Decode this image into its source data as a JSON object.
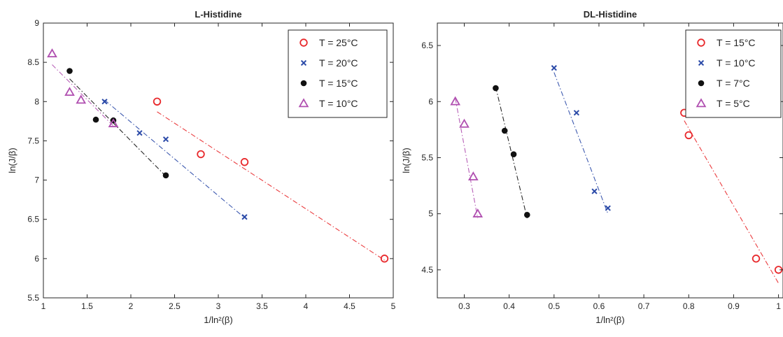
{
  "chart_data": [
    {
      "type": "scatter",
      "title": "L-Histidine",
      "xlabel": "1/ln²(β)",
      "ylabel": "ln(J/β)",
      "xlim": [
        1,
        5
      ],
      "ylim": [
        5.5,
        9
      ],
      "xticks": [
        "1",
        "1.5",
        "2",
        "2.5",
        "3",
        "3.5",
        "4",
        "4.5",
        "5"
      ],
      "yticks": [
        "5.5",
        "6",
        "6.5",
        "7",
        "7.5",
        "8",
        "8.5",
        "9"
      ],
      "grid": false,
      "legend_position": "top-right",
      "series": [
        {
          "name": "T = 25°C",
          "color": "#e8282b",
          "marker": "circle",
          "points": [
            [
              2.3,
              8.0
            ],
            [
              2.8,
              7.33
            ],
            [
              3.3,
              7.23
            ],
            [
              4.9,
              6.0
            ]
          ],
          "fit": [
            [
              2.3,
              7.87
            ],
            [
              4.9,
              5.98
            ]
          ]
        },
        {
          "name": "T = 20°C",
          "color": "#2b4aa8",
          "marker": "x",
          "points": [
            [
              1.7,
              8.0
            ],
            [
              2.1,
              7.6
            ],
            [
              2.4,
              7.52
            ],
            [
              3.3,
              6.53
            ]
          ],
          "fit": [
            [
              1.7,
              8.02
            ],
            [
              3.3,
              6.52
            ]
          ]
        },
        {
          "name": "T = 15°C",
          "color": "#111111",
          "marker": "dot",
          "points": [
            [
              1.3,
              8.39
            ],
            [
              1.6,
              7.77
            ],
            [
              1.8,
              7.76
            ],
            [
              2.4,
              7.06
            ]
          ],
          "fit": [
            [
              1.3,
              8.29
            ],
            [
              2.4,
              7.05
            ]
          ]
        },
        {
          "name": "T = 10°C",
          "color": "#b04fb0",
          "marker": "triangle",
          "points": [
            [
              1.1,
              8.61
            ],
            [
              1.3,
              8.12
            ],
            [
              1.43,
              8.02
            ],
            [
              1.8,
              7.72
            ]
          ],
          "fit": [
            [
              1.1,
              8.47
            ],
            [
              1.8,
              7.69
            ]
          ]
        }
      ]
    },
    {
      "type": "scatter",
      "title": "DL-Histidine",
      "xlabel": "1/ln²(β)",
      "ylabel": "ln(J/β)",
      "xlim": [
        0.24,
        1.01
      ],
      "ylim": [
        4.25,
        6.7
      ],
      "xticks": [
        "0.3",
        "0.4",
        "0.5",
        "0.6",
        "0.7",
        "0.8",
        "0.9",
        "1"
      ],
      "yticks": [
        "4.5",
        "5",
        "5.5",
        "6",
        "6.5"
      ],
      "grid": false,
      "legend_position": "top-right",
      "series": [
        {
          "name": "T = 15°C",
          "color": "#e8282b",
          "marker": "circle",
          "points": [
            [
              0.79,
              5.9
            ],
            [
              0.8,
              5.7
            ],
            [
              0.95,
              4.6
            ],
            [
              1.0,
              4.5
            ]
          ],
          "fit": [
            [
              0.79,
              5.83
            ],
            [
              1.0,
              4.38
            ]
          ]
        },
        {
          "name": "T = 10°C",
          "color": "#2b4aa8",
          "marker": "x",
          "points": [
            [
              0.5,
              6.3
            ],
            [
              0.55,
              5.9
            ],
            [
              0.59,
              5.2
            ],
            [
              0.62,
              5.05
            ]
          ],
          "fit": [
            [
              0.5,
              6.26
            ],
            [
              0.62,
              5.0
            ]
          ]
        },
        {
          "name": "T = 7°C",
          "color": "#111111",
          "marker": "dot",
          "points": [
            [
              0.37,
              6.12
            ],
            [
              0.39,
              5.74
            ],
            [
              0.41,
              5.53
            ],
            [
              0.44,
              4.99
            ]
          ],
          "fit": [
            [
              0.37,
              6.13
            ],
            [
              0.44,
              4.96
            ]
          ]
        },
        {
          "name": "T = 5°C",
          "color": "#b04fb0",
          "marker": "triangle",
          "points": [
            [
              0.28,
              6.0
            ],
            [
              0.3,
              5.8
            ],
            [
              0.32,
              5.33
            ],
            [
              0.33,
              5.0
            ]
          ],
          "fit": [
            [
              0.28,
              6.03
            ],
            [
              0.33,
              4.96
            ]
          ]
        }
      ]
    }
  ]
}
